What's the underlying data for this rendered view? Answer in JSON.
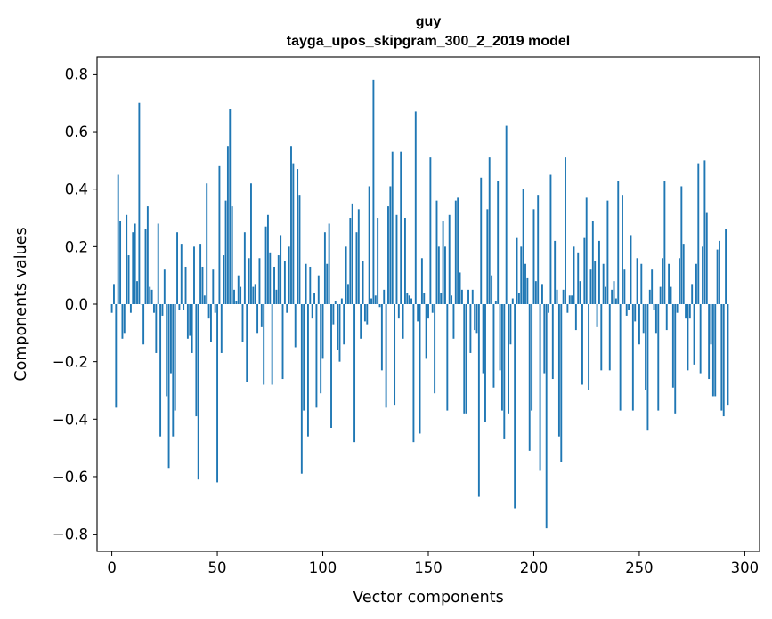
{
  "chart_data": {
    "type": "bar",
    "title": "guy",
    "subtitle": "tayga_upos_skipgram_300_2_2019 model",
    "xlabel": "Vector components",
    "ylabel": "Components values",
    "xlim": [
      -7,
      307
    ],
    "ylim": [
      -0.86,
      0.86
    ],
    "xticks": [
      0,
      50,
      100,
      150,
      200,
      250,
      300
    ],
    "xtick_labels": [
      "0",
      "50",
      "100",
      "150",
      "200",
      "250",
      "300"
    ],
    "yticks": [
      -0.8,
      -0.6,
      -0.4,
      -0.2,
      0.0,
      0.2,
      0.4,
      0.6,
      0.8
    ],
    "ytick_labels": [
      "−0.8",
      "−0.6",
      "−0.4",
      "−0.2",
      "0.0",
      "0.2",
      "0.4",
      "0.6",
      "0.8"
    ],
    "bar_color": "#1f77b4",
    "grid": false,
    "legend": null,
    "values": [
      -0.03,
      0.07,
      -0.36,
      0.45,
      0.29,
      -0.12,
      -0.1,
      0.31,
      0.17,
      -0.03,
      0.25,
      0.28,
      0.08,
      0.7,
      0.0,
      -0.14,
      0.26,
      0.34,
      0.06,
      0.05,
      -0.03,
      -0.17,
      0.28,
      -0.46,
      -0.04,
      0.12,
      -0.32,
      -0.57,
      -0.24,
      -0.46,
      -0.37,
      0.25,
      -0.02,
      0.21,
      -0.02,
      0.13,
      -0.12,
      -0.11,
      -0.17,
      0.2,
      -0.39,
      -0.61,
      0.21,
      0.13,
      0.03,
      0.42,
      -0.05,
      -0.13,
      0.12,
      -0.03,
      -0.62,
      0.48,
      -0.17,
      0.17,
      0.36,
      0.55,
      0.68,
      0.34,
      0.05,
      0.01,
      0.1,
      0.06,
      -0.13,
      0.25,
      -0.27,
      0.16,
      0.42,
      0.06,
      0.07,
      -0.1,
      0.16,
      -0.08,
      -0.28,
      0.27,
      0.31,
      0.18,
      -0.28,
      0.13,
      0.05,
      0.17,
      0.24,
      -0.26,
      0.15,
      -0.03,
      0.2,
      0.55,
      0.49,
      -0.15,
      0.47,
      0.38,
      -0.59,
      -0.37,
      0.14,
      -0.46,
      0.13,
      -0.05,
      0.04,
      -0.36,
      0.1,
      -0.31,
      -0.19,
      0.25,
      0.14,
      0.28,
      -0.43,
      -0.07,
      0.01,
      -0.16,
      -0.2,
      0.02,
      -0.14,
      0.2,
      0.07,
      0.3,
      0.35,
      -0.48,
      0.25,
      0.33,
      -0.12,
      0.15,
      -0.06,
      -0.07,
      0.41,
      0.02,
      0.78,
      0.03,
      0.3,
      -0.01,
      -0.23,
      0.05,
      -0.36,
      0.34,
      0.41,
      0.53,
      -0.35,
      0.31,
      -0.05,
      0.53,
      -0.12,
      0.3,
      0.04,
      0.03,
      0.02,
      -0.48,
      0.67,
      -0.06,
      -0.45,
      0.16,
      0.04,
      -0.19,
      -0.05,
      0.51,
      -0.03,
      -0.31,
      0.36,
      0.2,
      0.04,
      0.29,
      0.2,
      -0.37,
      0.31,
      0.03,
      -0.12,
      0.36,
      0.37,
      0.11,
      0.05,
      -0.38,
      -0.38,
      0.05,
      -0.17,
      0.05,
      -0.09,
      -0.1,
      -0.67,
      0.44,
      -0.24,
      -0.41,
      0.33,
      0.51,
      0.1,
      -0.29,
      0.01,
      0.43,
      -0.23,
      -0.37,
      -0.47,
      0.62,
      -0.38,
      -0.14,
      0.02,
      -0.71,
      0.23,
      0.04,
      0.2,
      0.4,
      0.14,
      0.09,
      -0.51,
      -0.37,
      0.33,
      0.08,
      0.38,
      -0.58,
      0.07,
      -0.24,
      -0.78,
      -0.03,
      0.45,
      -0.26,
      0.22,
      0.05,
      -0.46,
      -0.55,
      0.05,
      0.51,
      -0.03,
      0.03,
      0.03,
      0.2,
      -0.09,
      0.18,
      0.08,
      -0.28,
      0.23,
      0.37,
      -0.3,
      0.12,
      0.29,
      0.15,
      -0.08,
      0.22,
      -0.23,
      0.14,
      0.06,
      0.36,
      -0.23,
      0.05,
      0.08,
      0.02,
      0.43,
      -0.37,
      0.38,
      0.12,
      -0.04,
      -0.02,
      0.24,
      -0.37,
      -0.06,
      0.16,
      -0.14,
      0.14,
      -0.1,
      -0.3,
      -0.44,
      0.05,
      0.12,
      -0.02,
      -0.1,
      -0.37,
      0.06,
      0.16,
      0.43,
      -0.09,
      0.14,
      0.06,
      -0.29,
      -0.38,
      -0.03,
      0.16,
      0.41,
      0.21,
      -0.05,
      -0.23,
      -0.05,
      0.07,
      -0.21,
      0.14,
      0.49,
      -0.24,
      0.2,
      0.5,
      0.32,
      -0.26,
      -0.14,
      -0.32,
      -0.32,
      0.19,
      0.22,
      -0.37,
      -0.39,
      0.26,
      -0.35
    ]
  }
}
